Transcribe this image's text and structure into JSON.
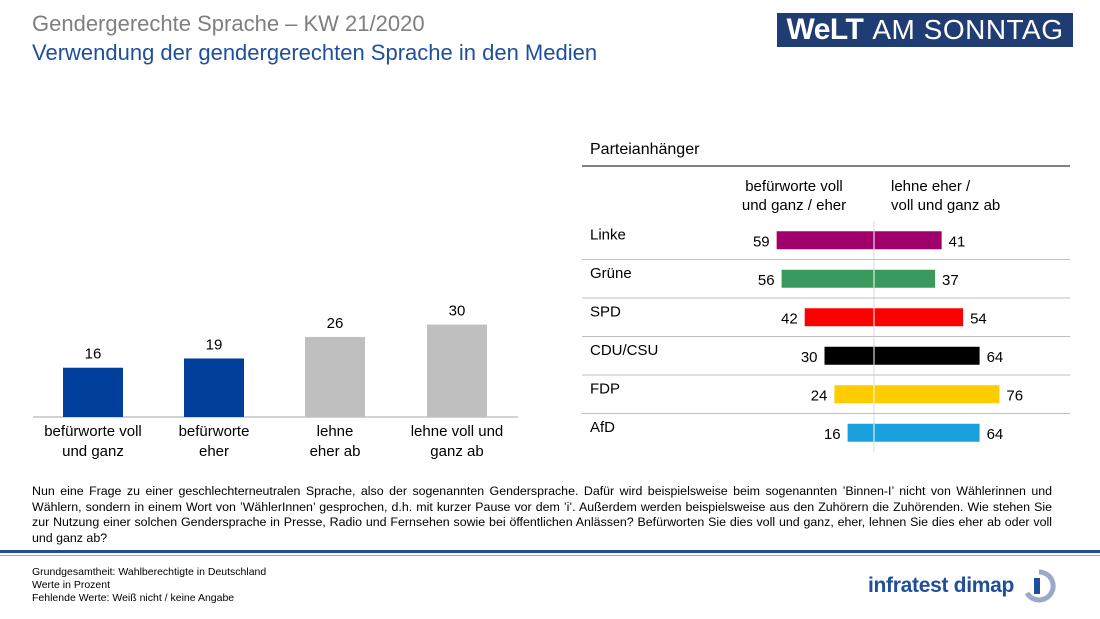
{
  "header": {
    "title": "Gendergerechte Sprache – KW 21/2020",
    "subtitle": "Verwendung der gendergerechten Sprache in den Medien",
    "logo_bold": "WeLT",
    "logo_thin": "AM SONNTAG"
  },
  "chart_data": [
    {
      "type": "bar",
      "title": "",
      "categories": [
        "befürworte voll und ganz",
        "befürworte eher",
        "lehne eher ab",
        "lehne voll und ganz ab"
      ],
      "category_lines": [
        [
          "befürworte voll",
          "und ganz"
        ],
        [
          "befürworte",
          "eher"
        ],
        [
          "lehne",
          "eher ab"
        ],
        [
          "lehne voll und",
          "ganz ab"
        ]
      ],
      "values": [
        16,
        19,
        26,
        30
      ],
      "colors": [
        "#003f9c",
        "#003f9c",
        "#bfbfbf",
        "#bfbfbf"
      ],
      "ylim": [
        0,
        40
      ],
      "xlabel": "",
      "ylabel": ""
    },
    {
      "type": "bar",
      "orientation": "horizontal-diverging",
      "title": "Parteianhänger",
      "header_left": [
        "befürworte voll",
        "und ganz / eher"
      ],
      "header_right": [
        "lehne eher /",
        "voll und ganz ab"
      ],
      "categories": [
        "Linke",
        "Grüne",
        "SPD",
        "CDU/CSU",
        "FDP",
        "AfD"
      ],
      "series": [
        {
          "name": "befürworte voll und ganz / eher",
          "values": [
            59,
            56,
            42,
            30,
            24,
            16
          ]
        },
        {
          "name": "lehne eher / voll und ganz ab",
          "values": [
            41,
            37,
            54,
            64,
            76,
            64
          ]
        }
      ],
      "colors": [
        "#a0006b",
        "#3a9a5e",
        "#ff0000",
        "#000000",
        "#ffcc00",
        "#1aa0dc"
      ]
    }
  ],
  "question": "Nun eine Frage zu einer geschlechterneutralen Sprache, also der sogenannten Gendersprache. Dafür wird beispielsweise beim sogenannten ’Binnen-I’ nicht von Wählerinnen und Wählern, sondern in einem Wort von ’WählerInnen’ gesprochen, d.h. mit kurzer Pause vor dem ’i’. Außerdem werden beispielsweise aus den Zuhörern die Zuhörenden. Wie stehen Sie zur Nutzung einer solchen Gendersprache in Presse, Radio und Fernsehen sowie bei öffentlichen Anlässen? Befürworten Sie dies voll und ganz, eher, lehnen Sie dies eher ab oder voll und ganz ab?",
  "footer": {
    "line1": "Grundgesamtheit: Wahlberechtigte in Deutschland",
    "line2": "Werte in Prozent",
    "line3": "Fehlende Werte: Weiß nicht / keine Angabe"
  },
  "brand": "infratest dimap"
}
